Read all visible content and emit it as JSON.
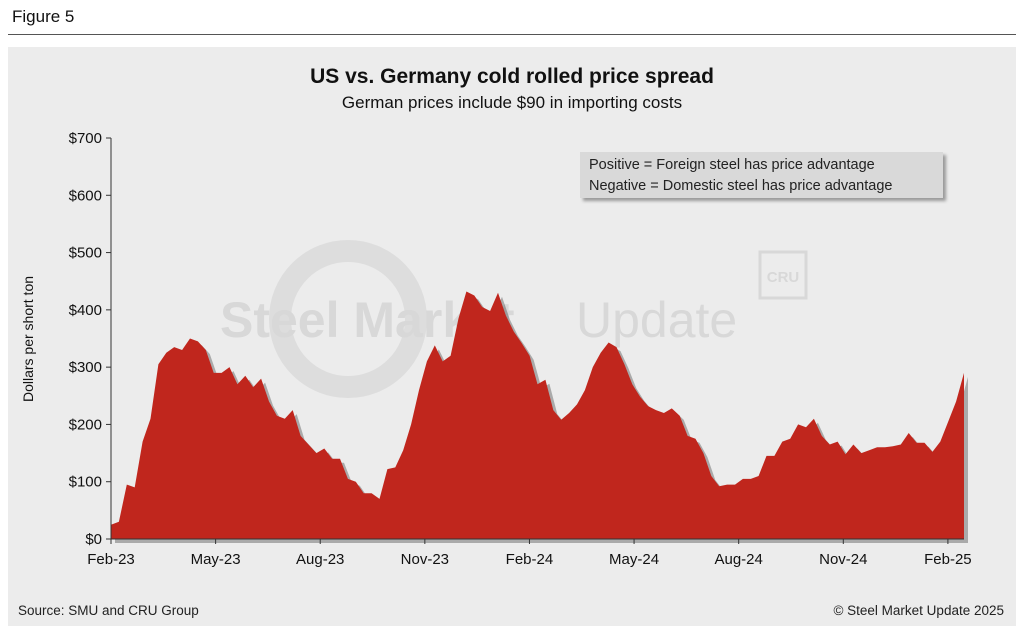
{
  "figure_label": "Figure 5",
  "footer": {
    "source": "Source: SMU and CRU Group",
    "copyright": "© Steel Market Update 2025"
  },
  "legend_note": {
    "line1": "Positive = Foreign steel has price advantage",
    "line2": "Negative = Domestic steel has price advantage"
  },
  "watermark": {
    "brand_bold": "Steel Market",
    "brand_light": "Update",
    "badge": "CRU"
  },
  "colors": {
    "area_fill": "#c0261d",
    "panel_background": "#ececec"
  },
  "chart_data": {
    "type": "area",
    "title": "US vs. Germany cold rolled price spread",
    "subtitle": "German prices include $90 in importing costs",
    "xlabel": "",
    "ylabel": "Dollars per short ton",
    "ylim": [
      0,
      700
    ],
    "yticks": [
      0,
      100,
      200,
      300,
      400,
      500,
      600,
      700
    ],
    "ytick_labels": [
      "$0",
      "$100",
      "$200",
      "$300",
      "$400",
      "$500",
      "$600",
      "$700"
    ],
    "xlim": [
      0,
      106
    ],
    "xtick_labels": [
      "Feb-23",
      "May-23",
      "Aug-23",
      "Nov-23",
      "Feb-24",
      "May-24",
      "Aug-24",
      "Nov-24",
      "Feb-25"
    ],
    "xtick_positions": [
      0,
      13,
      26,
      39,
      52,
      65,
      78,
      91,
      104
    ],
    "grid": false,
    "series": [
      {
        "name": "",
        "values": [
          25,
          30,
          95,
          90,
          170,
          210,
          305,
          325,
          335,
          330,
          350,
          345,
          330,
          290,
          290,
          300,
          270,
          285,
          265,
          280,
          240,
          215,
          210,
          225,
          180,
          165,
          150,
          158,
          140,
          140,
          105,
          100,
          80,
          80,
          70,
          122,
          125,
          155,
          200,
          260,
          310,
          338,
          310,
          320,
          385,
          432,
          425,
          405,
          398,
          430,
          390,
          362,
          342,
          320,
          270,
          278,
          225,
          208,
          220,
          235,
          260,
          300,
          325,
          343,
          335,
          305,
          270,
          248,
          232,
          225,
          220,
          228,
          215,
          180,
          175,
          150,
          110,
          92,
          95,
          95,
          105,
          105,
          110,
          145,
          145,
          170,
          175,
          200,
          195,
          210,
          180,
          165,
          170,
          148,
          165,
          150,
          155,
          160,
          160,
          162,
          165,
          185,
          168,
          168,
          152,
          170,
          205,
          240,
          290
        ]
      }
    ]
  }
}
